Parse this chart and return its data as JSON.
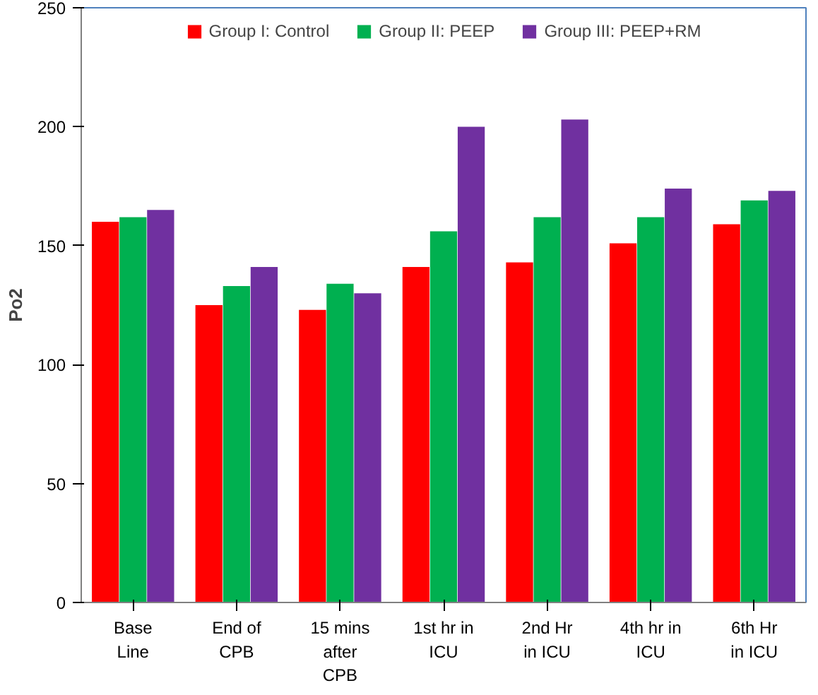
{
  "chart_data": {
    "type": "bar",
    "ylabel": "Po2",
    "categories": [
      "Base\nLine",
      "End of\nCPB",
      "15 mins\nafter\nCPB",
      "1st hr in\nICU",
      "2nd Hr\nin ICU",
      "4th hr in\nICU",
      "6th Hr\nin ICU"
    ],
    "series": [
      {
        "name": "Group I: Control",
        "color": "#ff0000",
        "values": [
          160,
          125,
          123,
          141,
          143,
          151,
          159
        ]
      },
      {
        "name": "Group II: PEEP",
        "color": "#00b050",
        "values": [
          162,
          133,
          134,
          156,
          162,
          162,
          169
        ]
      },
      {
        "name": "Group III: PEEP+RM",
        "color": "#7030a0",
        "values": [
          165,
          141,
          130,
          200,
          203,
          174,
          173
        ]
      }
    ],
    "ylim": [
      0,
      250
    ],
    "yticks": [
      0,
      50,
      100,
      150,
      200,
      250
    ],
    "grid": false,
    "legend": "top"
  }
}
